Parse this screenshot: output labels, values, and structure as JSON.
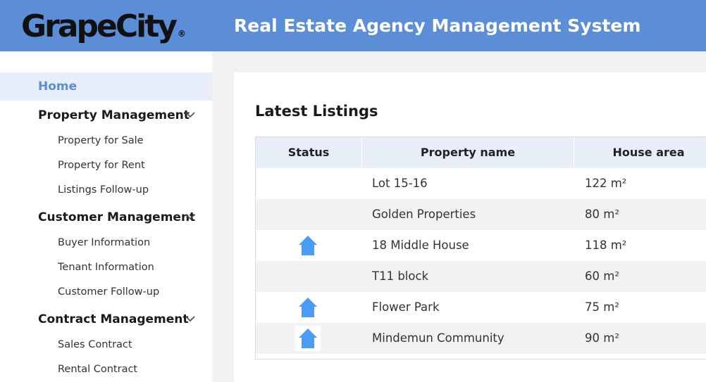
{
  "header": {
    "logo_text": "GrapeCity",
    "logo_mark": "®",
    "title": "Real Estate Agency Management System",
    "background": "#5b8ed6"
  },
  "sidebar": {
    "home": "Home",
    "sections": [
      {
        "label": "Property Management",
        "icon": "chevron-down-icon",
        "items": [
          "Property for Sale",
          "Property for Rent",
          "Listings Follow-up"
        ]
      },
      {
        "label": "Customer Management",
        "icon": "chevron-down-icon",
        "items": [
          "Buyer Information",
          "Tenant Information",
          "Customer Follow-up"
        ]
      },
      {
        "label": "Contract Management",
        "icon": "chevron-down-icon",
        "items": [
          "Sales Contract",
          "Rental Contract"
        ]
      }
    ]
  },
  "main": {
    "section_title": "Latest Listings",
    "columns": [
      "Status",
      "Property name",
      "House area"
    ],
    "rows": [
      {
        "status": "",
        "name": "Lot 15-16",
        "area": "122 m²"
      },
      {
        "status": "",
        "name": "Golden Properties",
        "area": "80 m²"
      },
      {
        "status": "house-icon",
        "name": "18 Middle House",
        "area": "118 m²"
      },
      {
        "status": "",
        "name": "T11 block",
        "area": "60 m²"
      },
      {
        "status": "house-icon",
        "name": "Flower Park",
        "area": "75 m²"
      },
      {
        "status": "house-icon",
        "name": "Mindemun Community",
        "area": "90 m²"
      }
    ],
    "status_icon_color": "#4a9cf7"
  }
}
